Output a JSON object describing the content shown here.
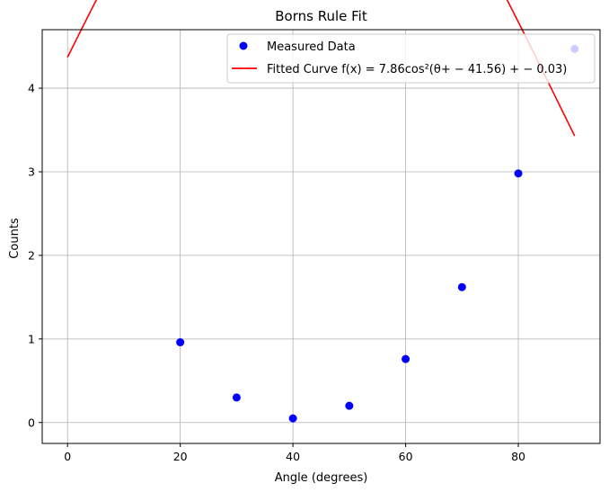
{
  "chart_data": {
    "type": "scatter",
    "title": "Borns Rule Fit",
    "xlabel": "Angle (degrees)",
    "ylabel": "Counts",
    "xlim": [
      -4.5,
      94.5
    ],
    "ylim": [
      -0.25,
      4.7
    ],
    "xticks": [
      0,
      20,
      40,
      60,
      80
    ],
    "xtick_labels": [
      "0",
      "20",
      "40",
      "60",
      "80"
    ],
    "yticks": [
      0,
      1,
      2,
      3,
      4
    ],
    "ytick_labels": [
      "0",
      "1",
      "2",
      "3",
      "4"
    ],
    "grid": true,
    "legend_position": "upper right",
    "series": [
      {
        "name": "Measured Data",
        "kind": "scatter",
        "color": "#0000ff",
        "x": [
          20,
          30,
          40,
          50,
          60,
          70,
          80,
          90
        ],
        "y": [
          0.96,
          0.3,
          0.05,
          0.2,
          0.76,
          1.62,
          2.98,
          4.47
        ]
      },
      {
        "name": "Fitted Curve f(x) = 7.86cos²(θ+ − 41.56) + − 0.03)",
        "kind": "line",
        "color": "#ff0000",
        "amplitude": 7.86,
        "phase": -41.56,
        "offset": -0.03,
        "x_range": [
          0,
          90
        ]
      }
    ]
  }
}
